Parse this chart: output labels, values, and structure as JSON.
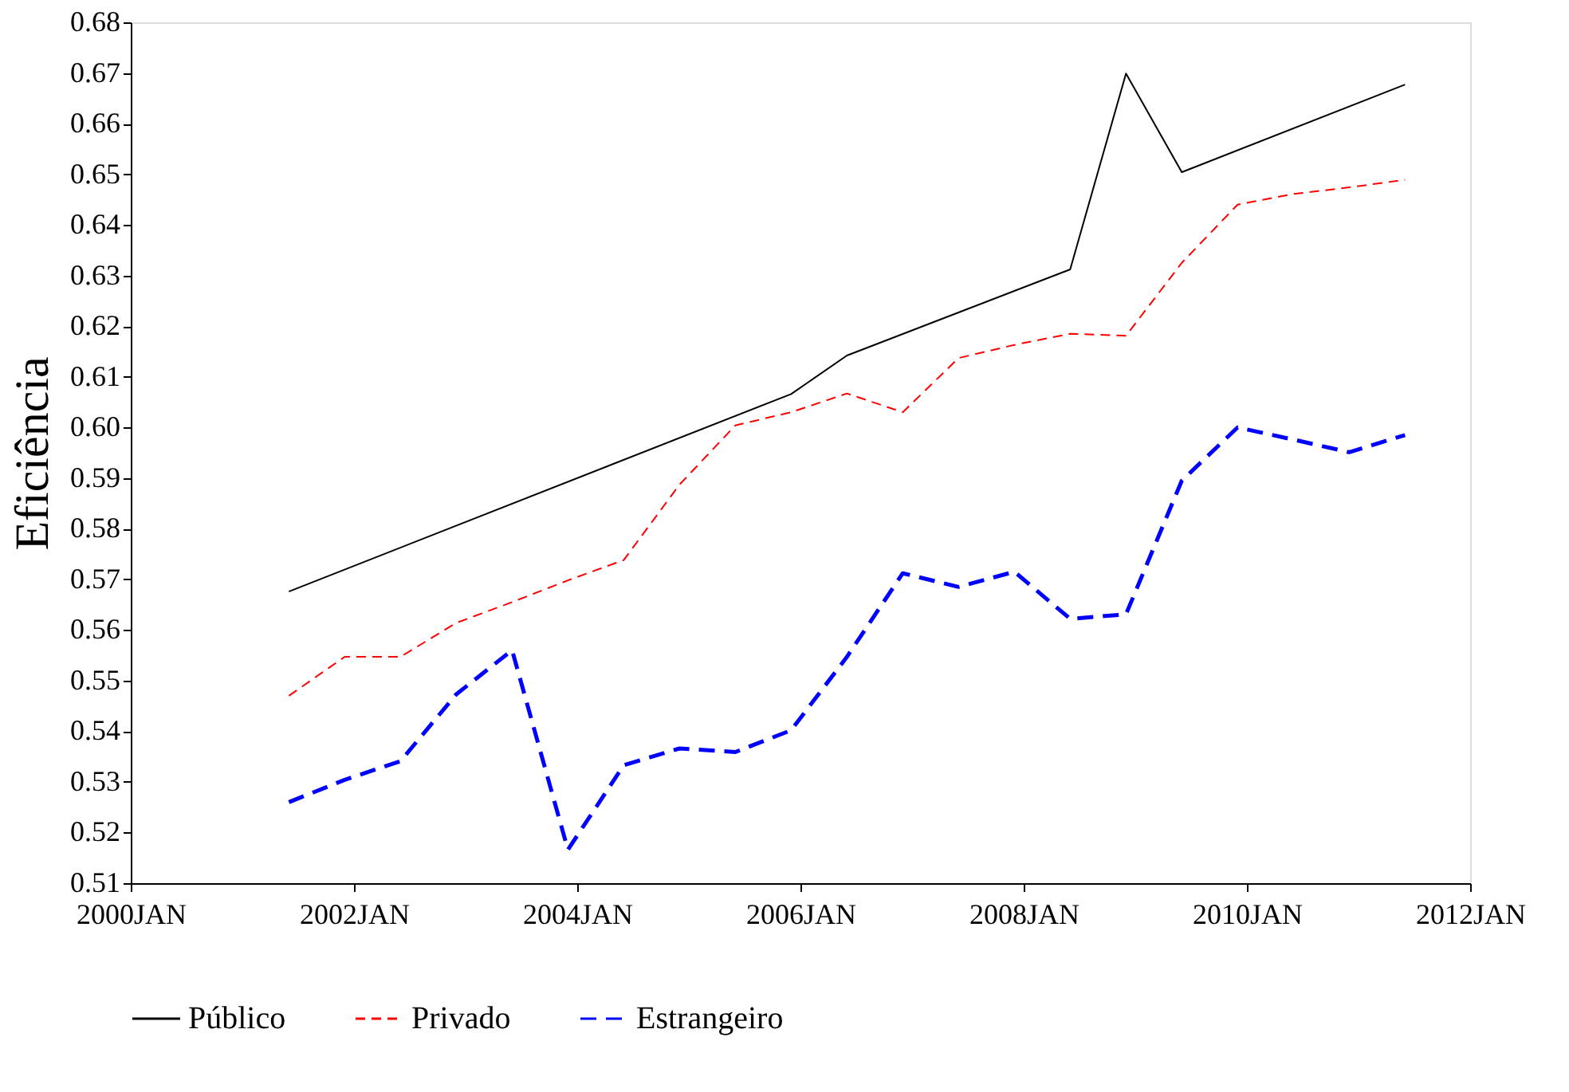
{
  "chart_data": {
    "type": "line",
    "ylabel": "Eficiência",
    "legend": "bottom",
    "grid": false,
    "xlim": [
      "2000-01",
      "2012-01"
    ],
    "xticks": [
      {
        "value": "2000-01",
        "label": "2000JAN"
      },
      {
        "value": "2002-01",
        "label": "2002JAN"
      },
      {
        "value": "2004-01",
        "label": "2004JAN"
      },
      {
        "value": "2006-01",
        "label": "2006JAN"
      },
      {
        "value": "2008-01",
        "label": "2008JAN"
      },
      {
        "value": "2010-01",
        "label": "2010JAN"
      },
      {
        "value": "2012-01",
        "label": "2012JAN"
      }
    ],
    "ylim": [
      0.51,
      0.68
    ],
    "yticks": [
      0.51,
      0.52,
      0.53,
      0.54,
      0.55,
      0.56,
      0.57,
      0.58,
      0.59,
      {
        "value": 0.6,
        "label": "0.60"
      },
      0.61,
      0.62,
      0.63,
      0.64,
      0.65,
      0.66,
      0.67,
      0.68
    ],
    "x": [
      "2001-06",
      "2001-12",
      "2002-06",
      "2002-12",
      "2003-06",
      "2003-12",
      "2004-06",
      "2004-12",
      "2005-06",
      "2005-12",
      "2006-06",
      "2006-12",
      "2007-06",
      "2007-12",
      "2008-06",
      "2008-12",
      "2009-06",
      "2009-12",
      "2010-06",
      "2010-12",
      "2011-06"
    ],
    "series": [
      {
        "name": "Público",
        "color": "#000000",
        "line_style": "solid",
        "x": [
          "2001-06",
          "2005-12",
          "2006-06",
          "2008-06",
          "2008-12",
          "2009-06",
          "2011-06"
        ],
        "values": [
          0.5676,
          0.6066,
          0.6142,
          0.6312,
          0.6699,
          0.6504,
          0.6677
        ]
      },
      {
        "name": "Privado",
        "color": "#ff0000",
        "line_style": "dashed",
        "values": [
          0.547,
          0.5547,
          0.5547,
          0.5614,
          0.5655,
          0.5698,
          0.5738,
          0.5887,
          0.6004,
          0.603,
          0.6067,
          0.603,
          0.6137,
          0.6163,
          0.6185,
          0.6181,
          0.6325,
          0.644,
          0.6461,
          0.6474,
          0.6489
        ]
      },
      {
        "name": "Estrangeiro",
        "color": "#0000ff",
        "line_style": "dashed",
        "values": [
          0.526,
          0.5304,
          0.5341,
          0.5473,
          0.556,
          0.5166,
          0.5333,
          0.5366,
          0.5359,
          0.5402,
          0.5547,
          0.5712,
          0.5685,
          0.5715,
          0.5622,
          0.5631,
          0.5895,
          0.6,
          0.5976,
          0.5951,
          0.5985
        ]
      }
    ]
  }
}
